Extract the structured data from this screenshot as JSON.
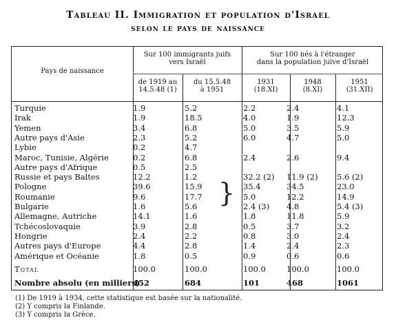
{
  "title_line1": "Tableau II. Immigration et population d'Israel",
  "title_line2": "selon le pays de naissance",
  "header": {
    "country_col": "Pays de naissance",
    "group1": [
      "Sur 100 immigrants juifs",
      "vers Israël"
    ],
    "group2": [
      "Sur 100 nés à l'étranger",
      "dans la population juive d'Israël"
    ],
    "sub": [
      [
        "de 1919 au",
        "14.5.48 (1)"
      ],
      [
        "du 15.5.48",
        "à 1951"
      ],
      [
        "1931",
        "(18.XI)"
      ],
      [
        "1948",
        "(8.XI)"
      ],
      [
        "1951",
        "(31.XII)"
      ]
    ]
  },
  "rows": [
    {
      "country": "Turquie",
      "v": [
        "1.9",
        "5.2",
        "2.2",
        "2.4",
        "4.1"
      ]
    },
    {
      "country": "Irak",
      "v": [
        "1.9",
        "18.5",
        "4.0",
        "1.9",
        "12.3"
      ]
    },
    {
      "country": "Yemen",
      "v": [
        "3.4",
        "6.8",
        "5.0",
        "3.5",
        "5.9"
      ]
    },
    {
      "country": "Autre pays d'Asie",
      "v": [
        "2.3",
        "5.2",
        "6.0",
        "4.7",
        "5.0"
      ]
    },
    {
      "country": "Lybie",
      "v": [
        "0.2",
        "4.7",
        "",
        "",
        ""
      ]
    },
    {
      "country": "Maroc, Tunisie, Algérie",
      "v": [
        "0.2",
        "6.8",
        "2.4",
        "2.6",
        "9.4"
      ]
    },
    {
      "country": "Autre pays d'Afrique",
      "v": [
        "0.5",
        "2.5",
        "",
        "",
        ""
      ]
    },
    {
      "country": "Russie et pays Baltes",
      "v": [
        "12.2",
        "1.2",
        "32.2 (2)",
        "11.9 (2)",
        "5.6 (2)"
      ]
    },
    {
      "country": "Pologne",
      "v": [
        "39.6",
        "15.9",
        "35.4",
        "34.5",
        "23.0"
      ]
    },
    {
      "country": "Roumanie",
      "v": [
        "9.6",
        "17.7",
        "5.0",
        "12.2",
        "14.9"
      ]
    },
    {
      "country": "Bulgarie",
      "v": [
        "1.6",
        "5.6",
        "2.4 (3)",
        "4.8",
        "5.4 (3)"
      ]
    },
    {
      "country": "Allemagne, Autriche",
      "v": [
        "14.1",
        "1.6",
        "1.8",
        "11.8",
        "5.9"
      ]
    },
    {
      "country": "Tchécoslovaquie",
      "v": [
        "3.9",
        "2.8",
        "0.5",
        "3.7",
        "3.2"
      ]
    },
    {
      "country": "Hongrie",
      "v": [
        "2.4",
        "2.2",
        "0.8",
        "3.0",
        "2.4"
      ]
    },
    {
      "country": "Autres pays d'Europe",
      "v": [
        "4.4",
        "2.8",
        "1.4",
        "2.4",
        "2.3"
      ]
    },
    {
      "country": "Amérique et Océanie",
      "v": [
        "1.8",
        "0.5",
        "0.9",
        "0.6",
        "0.6"
      ]
    }
  ],
  "total": {
    "label": "Total",
    "v": [
      "100.0",
      "100.0",
      "100.0",
      "100.0",
      "100.0"
    ]
  },
  "absolute": {
    "label": "Nombre absolu (en milliers)",
    "v": [
      "452",
      "684",
      "101",
      "468",
      "1061"
    ]
  },
  "notes": [
    "(1) De 1919 à 1934, cette statistique est basée sur la nationalité.",
    "(2) Y compris la Finlande.",
    "(3) Y compris la Grèce."
  ]
}
